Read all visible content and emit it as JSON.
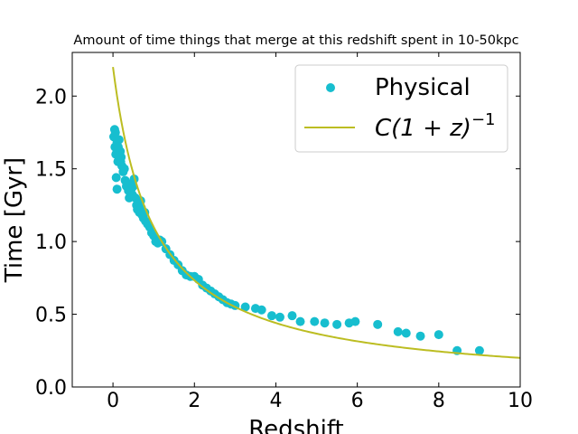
{
  "chart_data": {
    "type": "scatter",
    "title": "Amount of time things that merge at this redshift spent in 10-50kpc",
    "xlabel": "Redshift",
    "ylabel": "Time [Gyr]",
    "xlim": [
      -1,
      10
    ],
    "ylim": [
      0,
      2.3
    ],
    "xticks": [
      0,
      2,
      4,
      6,
      8,
      10
    ],
    "yticks": [
      0.0,
      0.5,
      1.0,
      1.5,
      2.0
    ],
    "xtick_labels": [
      "0",
      "2",
      "4",
      "6",
      "8",
      "10"
    ],
    "ytick_labels": [
      "0.0",
      "0.5",
      "1.0",
      "1.5",
      "2.0"
    ],
    "grid": false,
    "legend_position": "top-right",
    "colors": {
      "points": "#17becf",
      "curve": "#bcbd22"
    },
    "series": [
      {
        "name": "Physical",
        "kind": "scatter",
        "x": [
          0.02,
          0.04,
          0.06,
          0.08,
          0.1,
          0.12,
          0.05,
          0.07,
          0.15,
          0.18,
          0.2,
          0.22,
          0.25,
          0.28,
          0.1,
          0.13,
          0.16,
          0.19,
          0.3,
          0.33,
          0.35,
          0.38,
          0.4,
          0.43,
          0.45,
          0.48,
          0.5,
          0.52,
          0.55,
          0.58,
          0.6,
          0.62,
          0.65,
          0.68,
          0.7,
          0.72,
          0.75,
          0.78,
          0.8,
          0.85,
          0.9,
          0.95,
          1.0,
          1.05,
          1.1,
          1.15,
          1.2,
          1.3,
          1.4,
          1.5,
          1.6,
          1.7,
          1.8,
          1.9,
          2.0,
          2.1,
          2.2,
          2.3,
          2.4,
          2.5,
          2.6,
          2.7,
          2.8,
          2.9,
          3.0,
          3.25,
          3.5,
          3.65,
          3.9,
          4.1,
          4.4,
          4.6,
          4.95,
          5.2,
          5.5,
          5.8,
          5.95,
          6.5,
          7.0,
          7.2,
          7.55,
          8.0,
          8.45,
          9.0
        ],
        "y": [
          1.72,
          1.77,
          1.75,
          1.44,
          1.36,
          1.55,
          1.65,
          1.6,
          1.7,
          1.62,
          1.58,
          1.52,
          1.48,
          1.5,
          1.68,
          1.65,
          1.58,
          1.55,
          1.42,
          1.38,
          1.4,
          1.35,
          1.3,
          1.33,
          1.36,
          1.32,
          1.38,
          1.43,
          1.3,
          1.25,
          1.22,
          1.27,
          1.2,
          1.28,
          1.23,
          1.18,
          1.16,
          1.2,
          1.14,
          1.12,
          1.1,
          1.06,
          1.04,
          1.0,
          0.99,
          1.01,
          1.0,
          0.95,
          0.91,
          0.87,
          0.84,
          0.8,
          0.77,
          0.76,
          0.76,
          0.74,
          0.7,
          0.68,
          0.66,
          0.64,
          0.62,
          0.6,
          0.58,
          0.57,
          0.56,
          0.55,
          0.54,
          0.53,
          0.49,
          0.48,
          0.49,
          0.45,
          0.45,
          0.44,
          0.43,
          0.44,
          0.45,
          0.43,
          0.38,
          0.37,
          0.35,
          0.36,
          0.25,
          0.25
        ]
      },
      {
        "name": "$C(1+z)^{-1}$",
        "kind": "line",
        "C": 2.2,
        "x_range": [
          0,
          10
        ]
      }
    ],
    "legend": {
      "entries": [
        {
          "label": "Physical",
          "marker": "circle"
        },
        {
          "label_prefix": "C(1 + z)",
          "label_superscript": "−1",
          "marker": "line"
        }
      ]
    }
  }
}
